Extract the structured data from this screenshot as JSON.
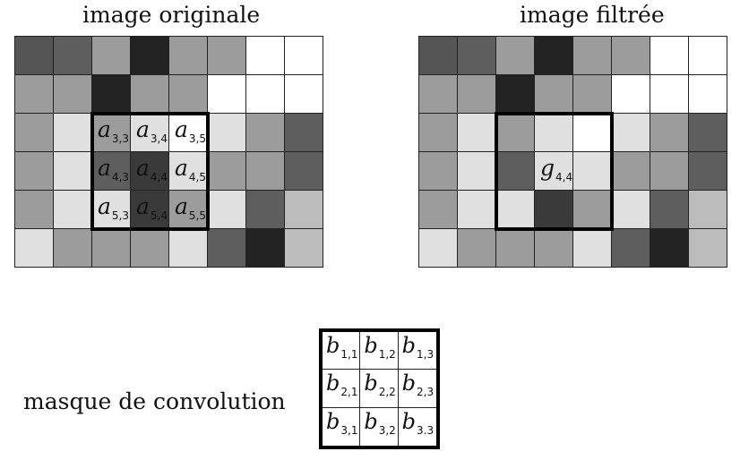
{
  "titles": {
    "original": "image originale",
    "filtered": "image filtrée"
  },
  "mask_label": "masque de convolution",
  "original_grid": {
    "rows": 6,
    "cols": 8,
    "colors": [
      [
        "#555555",
        "#5e5e5e",
        "#9c9c9c",
        "#222222",
        "#9c9c9c",
        "#9c9c9c",
        "#ffffff",
        "#ffffff"
      ],
      [
        "#9c9c9c",
        "#9c9c9c",
        "#222222",
        "#9c9c9c",
        "#9c9c9c",
        "#ffffff",
        "#ffffff",
        "#ffffff"
      ],
      [
        "#9c9c9c",
        "#e0e0e0",
        "#9c9c9c",
        "#e0e0e0",
        "#ffffff",
        "#e0e0e0",
        "#9c9c9c",
        "#5e5e5e"
      ],
      [
        "#9c9c9c",
        "#e0e0e0",
        "#5e5e5e",
        "#3a3a3a",
        "#e0e0e0",
        "#9c9c9c",
        "#9c9c9c",
        "#5e5e5e"
      ],
      [
        "#9c9c9c",
        "#e0e0e0",
        "#e0e0e0",
        "#3a3a3a",
        "#9c9c9c",
        "#e0e0e0",
        "#5e5e5e",
        "#bcbcbc"
      ],
      [
        "#e0e0e0",
        "#9c9c9c",
        "#9c9c9c",
        "#9c9c9c",
        "#e0e0e0",
        "#5e5e5e",
        "#222222",
        "#bcbcbc"
      ]
    ],
    "labels": [
      {
        "row": 2,
        "col": 2,
        "letter": "a",
        "index": "3,3"
      },
      {
        "row": 2,
        "col": 3,
        "letter": "a",
        "index": "3,4"
      },
      {
        "row": 2,
        "col": 4,
        "letter": "a",
        "index": "3,5"
      },
      {
        "row": 3,
        "col": 2,
        "letter": "a",
        "index": "4,3"
      },
      {
        "row": 3,
        "col": 3,
        "letter": "a",
        "index": "4,4"
      },
      {
        "row": 3,
        "col": 4,
        "letter": "a",
        "index": "4,5"
      },
      {
        "row": 4,
        "col": 2,
        "letter": "a",
        "index": "5,3"
      },
      {
        "row": 4,
        "col": 3,
        "letter": "a",
        "index": "5,4"
      },
      {
        "row": 4,
        "col": 4,
        "letter": "a",
        "index": "5,5"
      }
    ],
    "window": {
      "row": 2,
      "col": 2,
      "size": 3
    }
  },
  "filtered_grid": {
    "rows": 6,
    "cols": 8,
    "colors": [
      [
        "#555555",
        "#5e5e5e",
        "#9c9c9c",
        "#222222",
        "#9c9c9c",
        "#9c9c9c",
        "#ffffff",
        "#ffffff"
      ],
      [
        "#9c9c9c",
        "#9c9c9c",
        "#222222",
        "#9c9c9c",
        "#9c9c9c",
        "#ffffff",
        "#ffffff",
        "#ffffff"
      ],
      [
        "#9c9c9c",
        "#e0e0e0",
        "#9c9c9c",
        "#e0e0e0",
        "#ffffff",
        "#e0e0e0",
        "#9c9c9c",
        "#5e5e5e"
      ],
      [
        "#9c9c9c",
        "#e0e0e0",
        "#5e5e5e",
        "#e0e0e0",
        "#e0e0e0",
        "#9c9c9c",
        "#9c9c9c",
        "#5e5e5e"
      ],
      [
        "#9c9c9c",
        "#e0e0e0",
        "#e0e0e0",
        "#3a3a3a",
        "#9c9c9c",
        "#e0e0e0",
        "#5e5e5e",
        "#bcbcbc"
      ],
      [
        "#e0e0e0",
        "#9c9c9c",
        "#9c9c9c",
        "#9c9c9c",
        "#e0e0e0",
        "#5e5e5e",
        "#222222",
        "#bcbcbc"
      ]
    ],
    "labels": [
      {
        "row": 3,
        "col": 3,
        "letter": "g",
        "index": "4,4"
      }
    ],
    "window": {
      "row": 2,
      "col": 2,
      "size": 3
    }
  },
  "mask": {
    "labels": [
      {
        "letter": "b",
        "index": "1,1"
      },
      {
        "letter": "b",
        "index": "1,2"
      },
      {
        "letter": "b",
        "index": "1,3"
      },
      {
        "letter": "b",
        "index": "2,1"
      },
      {
        "letter": "b",
        "index": "2,2"
      },
      {
        "letter": "b",
        "index": "2,3"
      },
      {
        "letter": "b",
        "index": "3,1"
      },
      {
        "letter": "b",
        "index": "3,2"
      },
      {
        "letter": "b",
        "index": "3.3"
      }
    ]
  }
}
